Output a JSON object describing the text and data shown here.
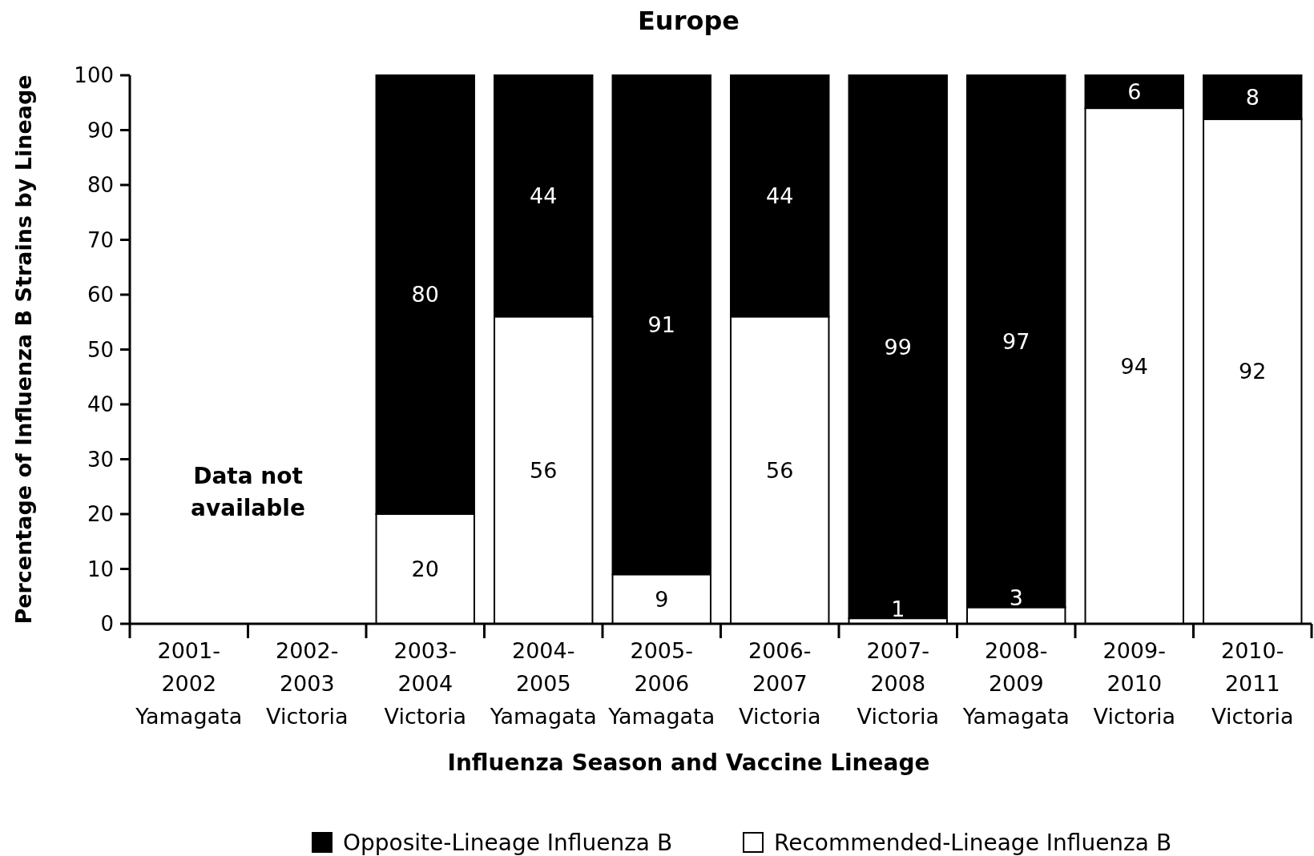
{
  "chart_data": {
    "type": "bar",
    "title": "Europe",
    "xlabel": "Influenza Season and Vaccine Lineage",
    "ylabel": "Percentage of Influenza B Strains by Lineage",
    "categories": [
      "2001-\n2002\nYamagata",
      "2002-\n2003\nVictoria",
      "2003-\n2004\nVictoria",
      "2004-\n2005\nYamagata",
      "2005-\n2006\nYamagata",
      "2006-\n2007\nVictoria",
      "2007-\n2008\nVictoria",
      "2008-\n2009\nYamagata",
      "2009-\n2010\nVictoria",
      "2010-\n2011\nVictoria"
    ],
    "series": [
      {
        "name": "Recommended-Lineage Influenza B",
        "color": "#ffffff",
        "values": [
          null,
          null,
          20,
          56,
          9,
          56,
          1,
          3,
          94,
          92
        ]
      },
      {
        "name": "Opposite-Lineage Influenza B",
        "color": "#000000",
        "values": [
          null,
          null,
          80,
          44,
          91,
          44,
          99,
          97,
          6,
          8
        ]
      }
    ],
    "stacked": true,
    "data_labels": true,
    "ylim": [
      0,
      100
    ],
    "yticks": [
      0,
      10,
      20,
      30,
      40,
      50,
      60,
      70,
      80,
      90,
      100
    ],
    "grid": false,
    "legend": "bottom",
    "annotations": [
      "Data not available"
    ]
  }
}
